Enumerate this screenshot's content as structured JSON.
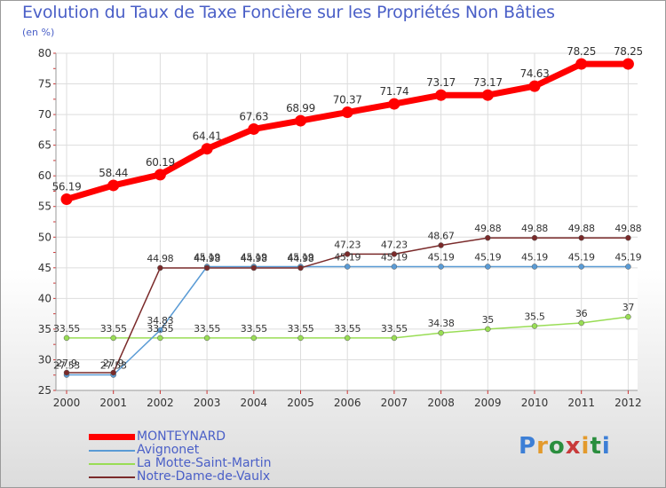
{
  "title": "Evolution du Taux de Taxe Foncière sur les Propriétés Non Bâties",
  "unit_label": "(en %)",
  "logo": {
    "text": "Proxiti"
  },
  "chart_data": {
    "type": "line",
    "title": "Evolution du Taux de Taxe Foncière sur les Propriétés Non Bâties",
    "ylabel": "(en %)",
    "xlabel": "",
    "ylim": [
      25,
      80
    ],
    "yticks": [
      25,
      30,
      35,
      40,
      45,
      50,
      55,
      60,
      65,
      70,
      75,
      80
    ],
    "grid": true,
    "legend_position": "bottom-left",
    "categories": [
      "2000",
      "2001",
      "2002",
      "2003",
      "2004",
      "2005",
      "2006",
      "2007",
      "2008",
      "2009",
      "2010",
      "2011",
      "2012"
    ],
    "series": [
      {
        "name": "MONTEYNARD",
        "color": "#ff0000",
        "values": [
          56.19,
          58.44,
          60.19,
          64.41,
          67.63,
          68.99,
          70.37,
          71.74,
          73.17,
          73.17,
          74.63,
          78.25,
          78.25
        ],
        "labels": [
          "56.19",
          "58.44",
          "60.19",
          "64.41",
          "67.63",
          "68.99",
          "70.37",
          "71.74",
          "73.17",
          "73.17",
          "74.63",
          "78.25",
          "78.25"
        ]
      },
      {
        "name": "Avignonet",
        "color": "#5a9bd5",
        "values": [
          27.53,
          27.53,
          34.83,
          45.19,
          45.19,
          45.19,
          45.19,
          45.19,
          45.19,
          45.19,
          45.19,
          45.19,
          45.19
        ],
        "labels": [
          "27.53",
          "27.53",
          "34.83",
          "45.19",
          "45.19",
          "45.19",
          "45.19",
          "45.19",
          "45.19",
          "45.19",
          "45.19",
          "45.19",
          "45.19"
        ]
      },
      {
        "name": "La Motte-Saint-Martin",
        "color": "#99dd55",
        "values": [
          33.55,
          33.55,
          33.55,
          33.55,
          33.55,
          33.55,
          33.55,
          33.55,
          34.38,
          35,
          35.5,
          36,
          37
        ],
        "labels": [
          "33.55",
          "33.55",
          "33.55",
          "33.55",
          "33.55",
          "33.55",
          "33.55",
          "33.55",
          "34.38",
          "35",
          "35.5",
          "36",
          "37"
        ]
      },
      {
        "name": "Notre-Dame-de-Vaulx",
        "color": "#7a2a2a",
        "values": [
          27.9,
          27.9,
          44.98,
          44.98,
          44.98,
          44.98,
          47.23,
          47.23,
          48.67,
          49.88,
          49.88,
          49.88,
          49.88
        ],
        "labels": [
          "27.9",
          "27.9",
          "44.98",
          "44.98",
          "44.98",
          "44.98",
          "47.23",
          "47.23",
          "48.67",
          "49.88",
          "49.88",
          "49.88",
          "49.88"
        ]
      }
    ]
  }
}
